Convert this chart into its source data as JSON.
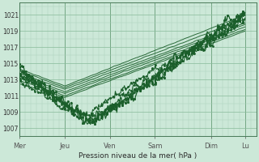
{
  "xlabel": "Pression niveau de la mer( hPa )",
  "bg_color": "#cce8d8",
  "grid_color_minor": "#aacfba",
  "grid_color_major": "#88bb99",
  "line_color": "#1a5e2a",
  "ylim": [
    1006.0,
    1022.5
  ],
  "yticks": [
    1007,
    1009,
    1011,
    1013,
    1015,
    1017,
    1019,
    1021
  ],
  "day_labels": [
    "Mer",
    "Jeu",
    "Ven",
    "Sam",
    "Dim",
    "Lu"
  ],
  "day_positions": [
    0.0,
    0.2,
    0.4,
    0.6,
    0.85,
    1.0
  ],
  "xlim": [
    0.0,
    1.05
  ]
}
